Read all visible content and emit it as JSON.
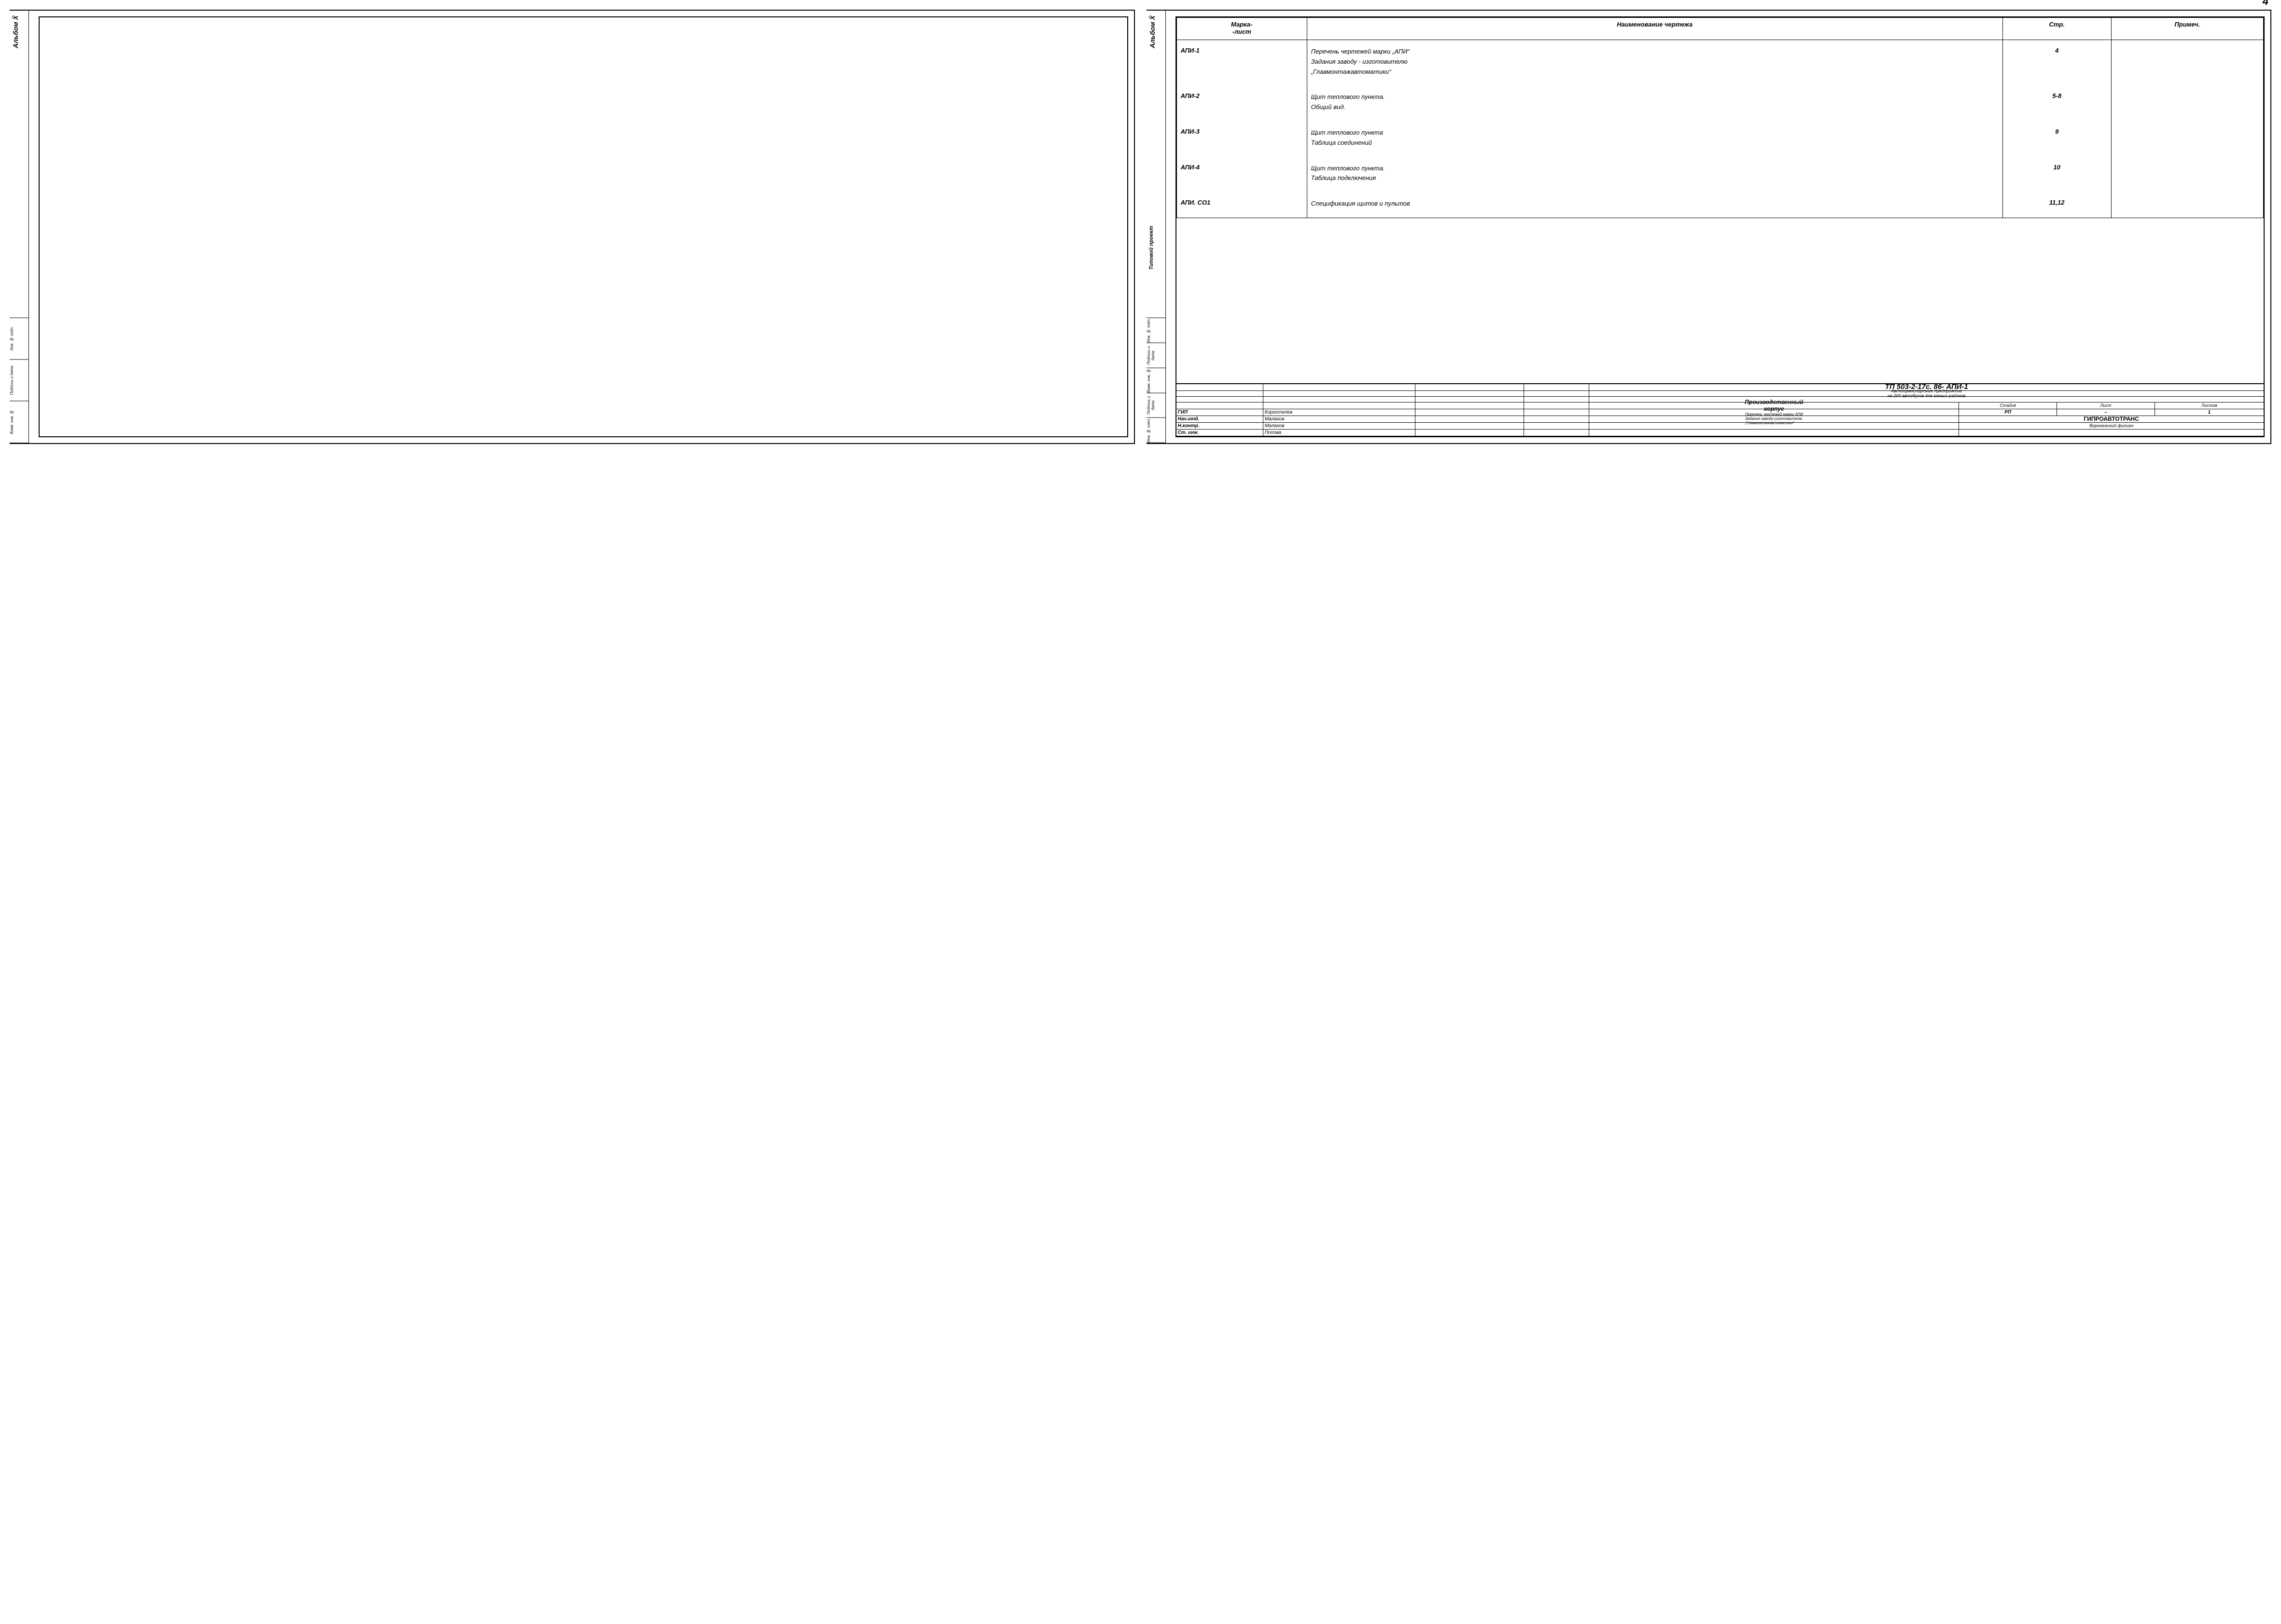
{
  "page_number": "4",
  "side_labels": {
    "album": "Альбом X̄",
    "project": "Типовой проект"
  },
  "side_cells": [
    "Инв. № подл.",
    "Подпись и дата",
    "Взам. инв. №",
    "Подпись и дата",
    "Инв. № подл."
  ],
  "headers": {
    "code": "Марка-\n-лист",
    "name": "Наименование чертежа",
    "page": "Стр.",
    "note": "Примеч."
  },
  "rows": [
    {
      "code": "АПИ-1",
      "name": "Перечень чертежей марки „АПИ“\nЗадания заводу - изготовителю\n„Главмонтажавтоматики“",
      "page": "4",
      "note": ""
    },
    {
      "code": "АПИ-2",
      "name": "Щит теплового пункта.\nОбщий вид.",
      "page": "5-8",
      "note": ""
    },
    {
      "code": "АПИ-3",
      "name": "Щит теплового пункта\nТаблица соединений",
      "page": "9",
      "note": ""
    },
    {
      "code": "АПИ-4",
      "name": "Щит теплового пункта.\nТаблица подключения",
      "page": "10",
      "note": ""
    },
    {
      "code": "АПИ. СО1",
      "name": "Спецификация щитов и пультов",
      "page": "11,12",
      "note": ""
    }
  ],
  "title_block": {
    "doc_code": "ТП 503-2-17с. 86-   АПИ-1",
    "line2": "Автотранспортное предприятие\nна 200 автобусов для южных районов",
    "line3": "Производственный\nкорпус",
    "line4": "Перечень чертежей марки АПИ\nЗадания заводу-изготовителю\n„Главмонтажавтоматики“",
    "org1": "ГИПРОАВТОТРАНС",
    "org2": "Воронежский филиал",
    "cols": {
      "stage": "Стадия",
      "sheet": "Лист",
      "sheets": "Листов"
    },
    "vals": {
      "stage": "РП",
      "sheet": "–",
      "sheets": "1"
    },
    "roles": [
      {
        "role": "ГИП",
        "name": "Коростелев"
      },
      {
        "role": "Нач.отд.",
        "name": "Малахов"
      },
      {
        "role": "Н.контр.",
        "name": "Малахов"
      },
      {
        "role": "Ст. инж.",
        "name": "Попова"
      }
    ]
  }
}
